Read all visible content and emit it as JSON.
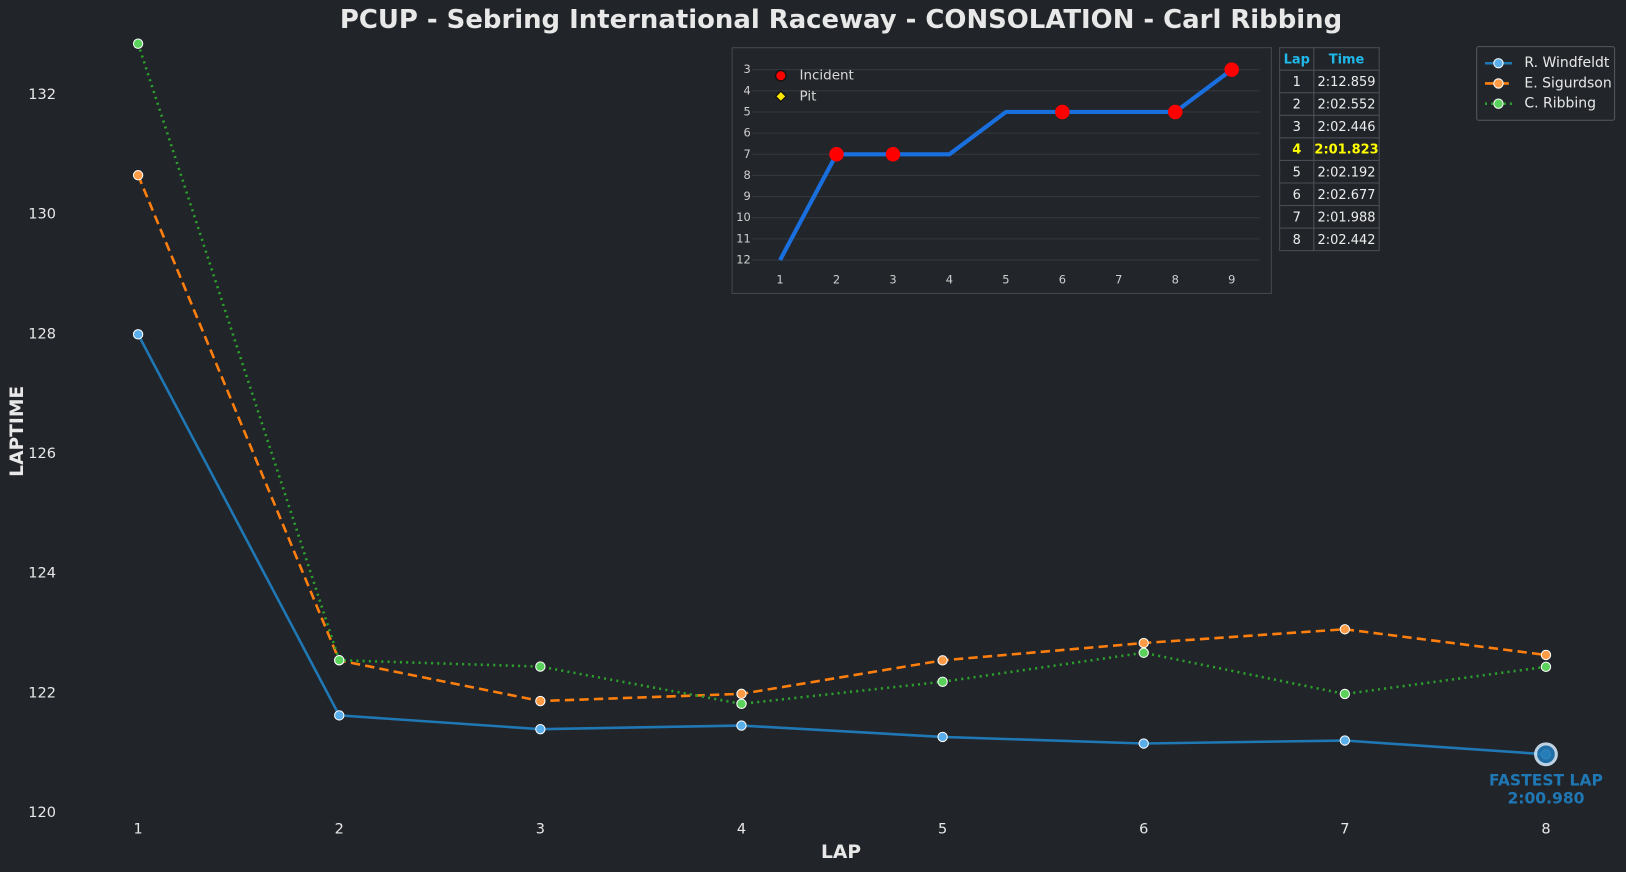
{
  "chart_data": [
    {
      "type": "line",
      "title": "PCUP - Sebring International Raceway - CONSOLATION - Carl Ribbing",
      "xlabel": "LAP",
      "ylabel": "LAPTIME",
      "x": [
        1,
        2,
        3,
        4,
        5,
        6,
        7,
        8
      ],
      "xlim": [
        0.7,
        8.3
      ],
      "xticks": [
        1,
        2,
        3,
        4,
        5,
        6,
        7,
        8
      ],
      "ylim": [
        120,
        133
      ],
      "yticks": [
        120,
        122,
        124,
        126,
        128,
        130,
        132
      ],
      "series": [
        {
          "name": "R. Windfeldt",
          "color": "#1f77b4",
          "marker_color": "#5aaeea",
          "dash": "solid",
          "values": [
            128.0,
            121.63,
            121.4,
            121.46,
            121.27,
            121.16,
            121.21,
            120.98
          ]
        },
        {
          "name": "E. Sigurdson",
          "color": "#ff7f0e",
          "marker_color": "#ff9a45",
          "dash": "dashed",
          "values": [
            130.66,
            122.55,
            121.87,
            121.99,
            122.55,
            122.84,
            123.07,
            122.64
          ]
        },
        {
          "name": "C. Ribbing",
          "color": "#2ca02c",
          "marker_color": "#5bd25b",
          "dash": "dotted",
          "values": [
            132.859,
            122.552,
            122.446,
            121.823,
            122.192,
            122.677,
            121.988,
            122.442
          ]
        }
      ],
      "annotation": [
        "FASTEST LAP",
        "2:00.980"
      ],
      "legend": "upper right"
    },
    {
      "type": "position",
      "x": [
        1,
        2,
        3,
        4,
        5,
        6,
        7,
        8,
        9
      ],
      "values": [
        12,
        7,
        7,
        7,
        5,
        5,
        5,
        5,
        3
      ],
      "color": "#1a6fdf",
      "xlim": [
        0.5,
        9.5
      ],
      "xticks": [
        1,
        2,
        3,
        4,
        5,
        6,
        7,
        8,
        9
      ],
      "ylim": [
        12.5,
        2.5
      ],
      "yticks": [
        3,
        4,
        5,
        6,
        7,
        8,
        9,
        10,
        11,
        12
      ],
      "grid": true,
      "markers": [
        {
          "name": "Incident",
          "color": "#ff0000",
          "shape": "circle",
          "x": [
            2,
            3,
            6,
            8,
            9
          ],
          "values": [
            7,
            7,
            5,
            5,
            3
          ]
        },
        {
          "name": "Pit",
          "color": "#ffe600",
          "shape": "diamond",
          "x": [],
          "values": []
        }
      ]
    }
  ],
  "table": {
    "header": [
      "Lap",
      "Time"
    ],
    "rows": [
      [
        1,
        "2:12.859"
      ],
      [
        2,
        "2:02.552"
      ],
      [
        3,
        "2:02.446"
      ],
      [
        4,
        "2:01.823"
      ],
      [
        5,
        "2:02.192"
      ],
      [
        6,
        "2:02.677"
      ],
      [
        7,
        "2:01.988"
      ],
      [
        8,
        "2:02.442"
      ]
    ]
  }
}
